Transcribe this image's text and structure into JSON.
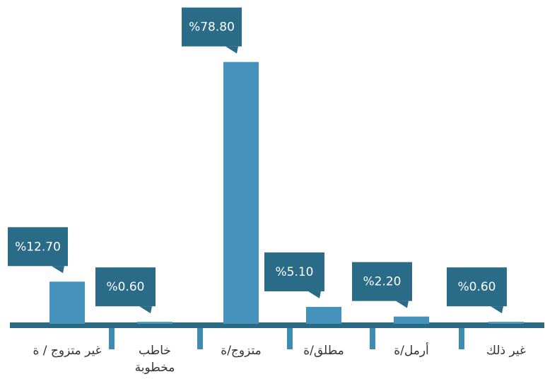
{
  "chart_data": {
    "type": "bar",
    "categories": [
      "غير متزوج / ة",
      "خاطب مخطوبة",
      "متزوج/ة",
      "مطلق/ة",
      "أرمل/ة",
      "غير ذلك"
    ],
    "values": [
      12.7,
      0.6,
      78.8,
      5.1,
      2.2,
      0.6
    ],
    "value_labels": [
      "%12.70",
      "%0.60",
      "%78.80",
      "%5.10",
      "%2.20",
      "%0.60"
    ],
    "color": "#4592bb",
    "ylim": [
      0,
      80
    ]
  }
}
